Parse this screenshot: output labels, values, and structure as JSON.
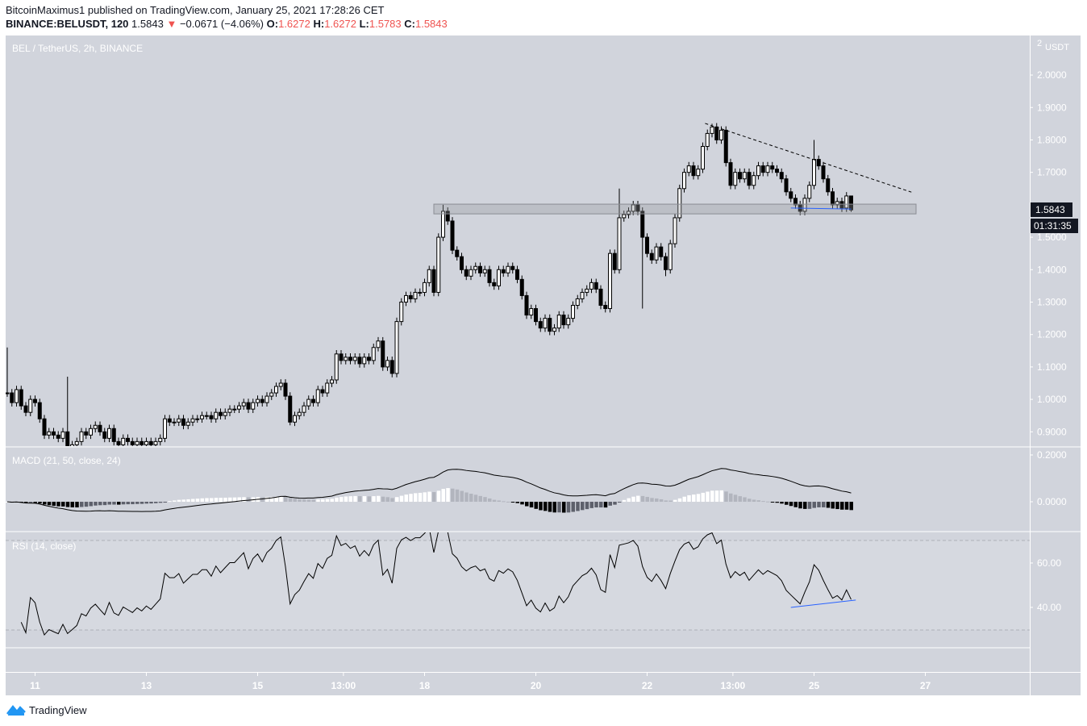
{
  "header": {
    "published": "BitcoinMaximus1 published on TradingView.com, January 25, 2021 17:28:26 CET",
    "symbol": "BINANCE:BELUSDT, 120",
    "last": "1.5843",
    "change_icon": "triangle-down-icon",
    "change_arrow": "▼",
    "change": "−0.0671 (−4.06%)",
    "o_label": "O:",
    "o": "1.6272",
    "h_label": "H:",
    "h": "1.6272",
    "l_label": "L:",
    "l": "1.5783",
    "c_label": "C:",
    "c": "1.5843"
  },
  "panes": {
    "main_legend": "BEL / TetherUS, 2h, BINANCE",
    "macd_legend": "MACD (21, 50, close, 24)",
    "rsi_legend": "RSI (14, close)"
  },
  "price_axis": {
    "unit": "USDT",
    "top_partial": "2",
    "ticks": [
      "2.0000",
      "1.9000",
      "1.8000",
      "1.7000",
      "1.5000",
      "1.4000",
      "1.3000",
      "1.2000",
      "1.1000",
      "1.0000",
      "0.9000"
    ],
    "last_price_label": "1.5843",
    "countdown": "01:31:35"
  },
  "macd_axis": {
    "ticks": [
      "0.2000",
      "0.0000"
    ]
  },
  "rsi_axis": {
    "ticks": [
      "60.00",
      "40.00"
    ]
  },
  "time_axis": {
    "ticks": [
      {
        "label": "11",
        "time": "2021-01-11T00:00Z"
      },
      {
        "label": "13",
        "time": "2021-01-13T00:00Z"
      },
      {
        "label": "15",
        "time": "2021-01-15T00:00Z"
      },
      {
        "label": "13:00",
        "time": "2021-01-16T13:00Z"
      },
      {
        "label": "18",
        "time": "2021-01-18T00:00Z"
      },
      {
        "label": "20",
        "time": "2021-01-20T00:00Z"
      },
      {
        "label": "22",
        "time": "2021-01-22T00:00Z"
      },
      {
        "label": "13:00",
        "time": "2021-01-23T13:00Z"
      },
      {
        "label": "25",
        "time": "2021-01-25T00:00Z"
      },
      {
        "label": "27",
        "time": "2021-01-27T00:00Z"
      }
    ]
  },
  "footer": {
    "brand": "TradingView",
    "logo_icon": "tradingview-cloud-icon"
  },
  "colors": {
    "pane_bg": "#d1d4dc",
    "up_body": "#ffffff",
    "down_body": "#000000",
    "label_bg": "#131722",
    "red": "#ef5350",
    "annotation_blue": "#2962ff",
    "hist_pos_up": "#ffffff",
    "hist_pos_down": "#b2b5be",
    "hist_neg_down": "#000000",
    "hist_neg_up": "#5d606b"
  },
  "chart_data": {
    "type": "candlestick",
    "title": "BEL / TetherUS, 2h, BINANCE",
    "interval": "2h",
    "first_candle_time": "2021-01-10T12:00Z",
    "ylim": [
      0.856,
      2.122
    ],
    "grid": false,
    "close": [
      1.02,
      0.99,
      1.03,
      0.98,
      0.96,
      1.0,
      0.99,
      0.94,
      0.89,
      0.9,
      0.89,
      0.88,
      0.9,
      0.85,
      0.86,
      0.87,
      0.9,
      0.89,
      0.91,
      0.92,
      0.9,
      0.88,
      0.91,
      0.87,
      0.86,
      0.88,
      0.87,
      0.86,
      0.87,
      0.86,
      0.87,
      0.86,
      0.87,
      0.88,
      0.94,
      0.93,
      0.93,
      0.94,
      0.92,
      0.93,
      0.94,
      0.94,
      0.95,
      0.95,
      0.94,
      0.96,
      0.95,
      0.96,
      0.97,
      0.97,
      0.98,
      0.99,
      0.97,
      0.99,
      1.0,
      0.99,
      1.01,
      1.02,
      1.04,
      1.05,
      1.01,
      0.93,
      0.95,
      0.96,
      0.98,
      1.0,
      0.99,
      1.03,
      1.02,
      1.05,
      1.06,
      1.14,
      1.12,
      1.13,
      1.12,
      1.13,
      1.11,
      1.13,
      1.12,
      1.16,
      1.18,
      1.1,
      1.12,
      1.08,
      1.24,
      1.3,
      1.32,
      1.31,
      1.33,
      1.33,
      1.36,
      1.4,
      1.33,
      1.5,
      1.58,
      1.55,
      1.46,
      1.44,
      1.4,
      1.38,
      1.4,
      1.41,
      1.39,
      1.4,
      1.36,
      1.35,
      1.4,
      1.39,
      1.41,
      1.4,
      1.37,
      1.32,
      1.26,
      1.28,
      1.24,
      1.22,
      1.25,
      1.21,
      1.22,
      1.26,
      1.23,
      1.25,
      1.29,
      1.31,
      1.33,
      1.34,
      1.36,
      1.34,
      1.29,
      1.28,
      1.45,
      1.4,
      1.56,
      1.57,
      1.58,
      1.6,
      1.58,
      1.5,
      1.45,
      1.43,
      1.47,
      1.44,
      1.4,
      1.48,
      1.56,
      1.65,
      1.7,
      1.72,
      1.69,
      1.71,
      1.78,
      1.82,
      1.84,
      1.8,
      1.83,
      1.73,
      1.66,
      1.7,
      1.68,
      1.7,
      1.66,
      1.69,
      1.72,
      1.7,
      1.72,
      1.71,
      1.7,
      1.68,
      1.64,
      1.62,
      1.6,
      1.58,
      1.62,
      1.66,
      1.74,
      1.72,
      1.68,
      1.64,
      1.6,
      1.61,
      1.59,
      1.6272,
      1.5843
    ],
    "notable_highs": {
      "0": 1.16,
      "13": 1.07,
      "94": 1.6,
      "132": 1.65,
      "152": 1.85,
      "174": 1.8,
      "182": 1.6272
    },
    "notable_lows": {
      "61": 0.92,
      "137": 1.28,
      "142": 1.38,
      "182": 1.5783
    },
    "macd": {
      "fast": 21,
      "slow": 50,
      "source": "close",
      "signal": 24,
      "ylim": [
        -0.124,
        0.231
      ]
    },
    "rsi": {
      "length": 14,
      "source": "close",
      "ylim": [
        21.8,
        73.8
      ],
      "bands": [
        70,
        30
      ]
    },
    "annotations": {
      "support_zone": {
        "from": "2021-01-18T04:00Z",
        "to": "2021-01-26T20:00Z",
        "low": 1.572,
        "high": 1.602
      },
      "descending_trendline": {
        "from": [
          "2021-01-23T01:00Z",
          1.851
        ],
        "to": [
          "2021-01-26T18:00Z",
          1.639
        ],
        "style": "dashed"
      },
      "price_low_line": {
        "from": [
          "2021-01-24T14:00Z",
          1.59
        ],
        "to": [
          "2021-01-25T16:00Z",
          1.587
        ]
      },
      "rsi_divergence_line": {
        "from": [
          "2021-01-24T14:00Z",
          40.0
        ],
        "to": [
          "2021-01-25T18:00Z",
          43.3
        ]
      }
    }
  }
}
